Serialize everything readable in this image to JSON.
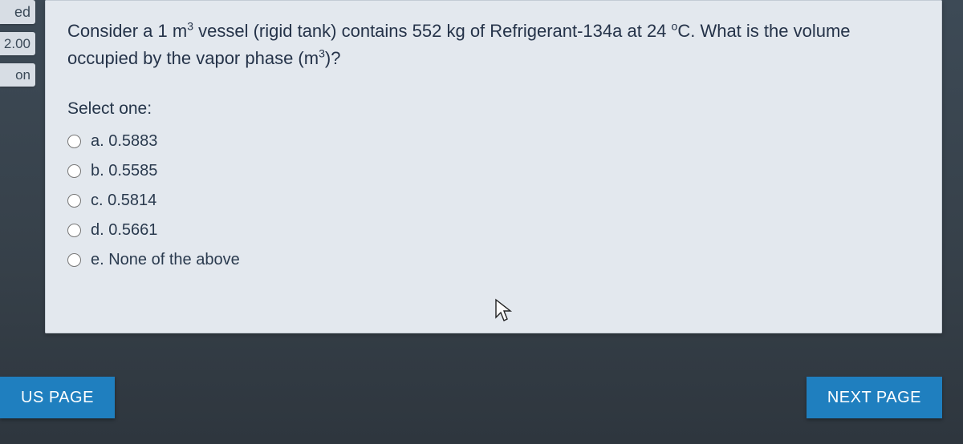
{
  "sidebar": {
    "stub1": "ed",
    "stub2": "2.00",
    "stub3": "on"
  },
  "question": {
    "text_part1": "Consider a 1 m",
    "sup1": "3",
    "text_part2": " vessel (rigid tank) contains 552 kg of Refrigerant-134a at 24 ",
    "sup2": "o",
    "text_part3": "C. What is the volume occupied by the vapor phase (m",
    "sup3": "3",
    "text_part4": ")?"
  },
  "prompt_label": "Select one:",
  "options": {
    "a": {
      "label": "a. 0.5883"
    },
    "b": {
      "label": "b. 0.5585"
    },
    "c": {
      "label": "c. 0.5814"
    },
    "d": {
      "label": "d. 0.5661"
    },
    "e": {
      "label": "e. None of the above"
    }
  },
  "nav": {
    "prev": "US PAGE",
    "next": "NEXT PAGE"
  },
  "colors": {
    "card_bg": "#e3e8ee",
    "button_bg": "#1f7fbf",
    "page_bg_top": "#3d4a56"
  }
}
